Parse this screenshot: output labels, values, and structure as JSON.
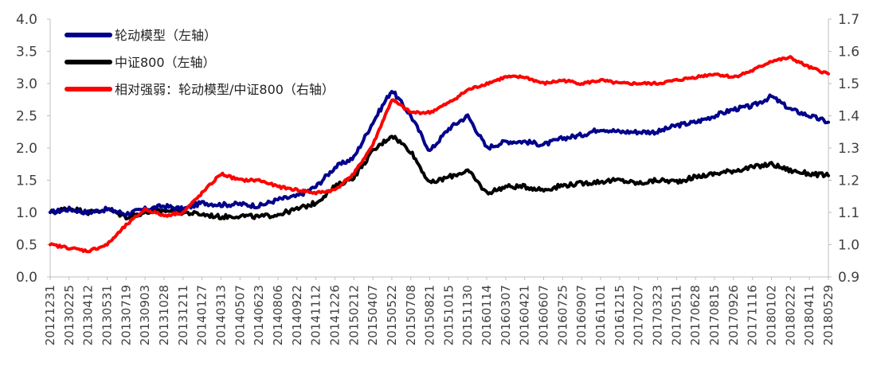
{
  "chart_data": {
    "type": "line",
    "title": "",
    "xlabel": "",
    "ylabel": "",
    "left_axis": {
      "min": 0.0,
      "max": 4.0,
      "step": 0.5,
      "ticks": [
        "0.0",
        "0.5",
        "1.0",
        "1.5",
        "2.0",
        "2.5",
        "3.0",
        "3.5",
        "4.0"
      ]
    },
    "right_axis": {
      "min": 0.9,
      "max": 1.7,
      "step": 0.1,
      "ticks": [
        "0.9",
        "1.0",
        "1.1",
        "1.2",
        "1.3",
        "1.4",
        "1.5",
        "1.6",
        "1.7"
      ]
    },
    "grid": false,
    "legend_position": "top-left",
    "x_ticks": [
      "20121231",
      "20130225",
      "20130412",
      "20130531",
      "20130719",
      "20130903",
      "20131028",
      "20131211",
      "20140127",
      "20140313",
      "20140507",
      "20140623",
      "20140806",
      "20140922",
      "20141112",
      "20141226",
      "20150212",
      "20150407",
      "20150522",
      "20150708",
      "20150821",
      "20151015",
      "20151130",
      "20160114",
      "20160307",
      "20160421",
      "20160607",
      "20160725",
      "20160907",
      "20161101",
      "20161215",
      "20170207",
      "20170323",
      "20170511",
      "20170628",
      "20170815",
      "20170926",
      "20171116",
      "20180102",
      "20180222",
      "20180411",
      "20180529"
    ],
    "series": [
      {
        "name": "轮动模型（左轴）",
        "axis": "left",
        "color": "#00008B",
        "values": [
          1.0,
          1.05,
          1.0,
          1.05,
          0.98,
          1.05,
          1.1,
          1.05,
          1.15,
          1.12,
          1.13,
          1.1,
          1.2,
          1.25,
          1.4,
          1.7,
          1.85,
          2.4,
          2.9,
          2.5,
          1.95,
          2.3,
          2.5,
          2.0,
          2.1,
          2.1,
          2.05,
          2.15,
          2.2,
          2.3,
          2.25,
          2.25,
          2.25,
          2.35,
          2.4,
          2.5,
          2.6,
          2.65,
          2.8,
          2.6,
          2.5,
          2.4
        ]
      },
      {
        "name": "中证800（左轴）",
        "axis": "left",
        "color": "#000000",
        "values": [
          1.0,
          1.07,
          1.0,
          1.05,
          0.93,
          1.0,
          1.03,
          1.0,
          0.97,
          0.93,
          0.95,
          0.93,
          0.97,
          1.05,
          1.15,
          1.4,
          1.55,
          1.95,
          2.2,
          1.95,
          1.45,
          1.55,
          1.65,
          1.3,
          1.4,
          1.4,
          1.35,
          1.42,
          1.45,
          1.48,
          1.5,
          1.45,
          1.5,
          1.48,
          1.55,
          1.6,
          1.65,
          1.7,
          1.75,
          1.65,
          1.6,
          1.57
        ]
      },
      {
        "name": "相对强弱：轮动模型/中证800（右轴）",
        "axis": "right",
        "color": "#FF0000",
        "values": [
          1.0,
          0.99,
          0.98,
          1.0,
          1.06,
          1.11,
          1.09,
          1.1,
          1.16,
          1.22,
          1.2,
          1.2,
          1.18,
          1.17,
          1.16,
          1.17,
          1.22,
          1.31,
          1.45,
          1.41,
          1.41,
          1.44,
          1.48,
          1.5,
          1.52,
          1.52,
          1.5,
          1.51,
          1.5,
          1.51,
          1.5,
          1.5,
          1.5,
          1.51,
          1.52,
          1.53,
          1.52,
          1.54,
          1.57,
          1.58,
          1.55,
          1.53
        ]
      }
    ]
  }
}
